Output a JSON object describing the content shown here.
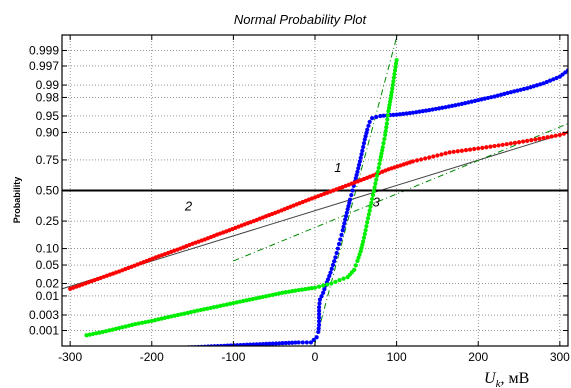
{
  "chart_data": {
    "type": "scatter",
    "title": "Normal Probability Plot",
    "xlabel_main": "U",
    "xlabel_sub": "k",
    "xlabel_unit": ", мВ",
    "ylabel": "Probability",
    "xlim": [
      -310,
      310
    ],
    "ylim_prob": [
      0.0003,
      0.9997
    ],
    "x_ticks": [
      -300,
      -200,
      -100,
      0,
      100,
      200,
      300
    ],
    "x_tick_labels": [
      "-300",
      "-200",
      "-100",
      "0",
      "100",
      "200",
      "300"
    ],
    "y_ticks": [
      0.001,
      0.003,
      0.01,
      0.02,
      0.05,
      0.1,
      0.25,
      0.5,
      0.75,
      0.9,
      0.95,
      0.98,
      0.99,
      0.997,
      0.999
    ],
    "y_tick_labels": [
      "0.001",
      "0.003",
      "0.01",
      "0.02",
      "0.05",
      "0.10",
      "0.25",
      "0.50",
      "0.75",
      "0.90",
      "0.95",
      "0.98",
      "0.99",
      "0.997",
      "0.999"
    ],
    "y_scale": "normal-probability",
    "grid": true,
    "reference_line_p": 0.5,
    "annotations": [
      {
        "text": "1",
        "x": 28,
        "p": 0.66
      },
      {
        "text": "2",
        "x": -155,
        "p": 0.33
      },
      {
        "text": "3",
        "x": 75,
        "p": 0.36
      }
    ],
    "series": [
      {
        "label": "1",
        "color": "#0000ff",
        "points": [
          [
            -250,
            0.0002
          ],
          [
            -20,
            0.0004
          ],
          [
            -5,
            0.0004
          ],
          [
            2,
            0.0006
          ],
          [
            4,
            0.0009
          ],
          [
            5,
            0.0015
          ],
          [
            5,
            0.0025
          ],
          [
            5,
            0.005
          ],
          [
            6,
            0.008
          ],
          [
            10,
            0.012
          ],
          [
            13,
            0.018
          ],
          [
            16,
            0.025
          ],
          [
            19,
            0.035
          ],
          [
            22,
            0.05
          ],
          [
            25,
            0.07
          ],
          [
            28,
            0.1
          ],
          [
            31,
            0.14
          ],
          [
            34,
            0.19
          ],
          [
            37,
            0.26
          ],
          [
            40,
            0.34
          ],
          [
            43,
            0.42
          ],
          [
            46,
            0.5
          ],
          [
            49,
            0.58
          ],
          [
            52,
            0.66
          ],
          [
            55,
            0.74
          ],
          [
            58,
            0.81
          ],
          [
            61,
            0.87
          ],
          [
            64,
            0.91
          ],
          [
            67,
            0.935
          ],
          [
            70,
            0.945
          ],
          [
            80,
            0.95
          ],
          [
            100,
            0.953
          ],
          [
            120,
            0.957
          ],
          [
            140,
            0.962
          ],
          [
            160,
            0.967
          ],
          [
            180,
            0.972
          ],
          [
            200,
            0.977
          ],
          [
            220,
            0.981
          ],
          [
            240,
            0.985
          ],
          [
            260,
            0.988
          ],
          [
            280,
            0.991
          ],
          [
            300,
            0.994
          ],
          [
            310,
            0.996
          ]
        ]
      },
      {
        "label": "2",
        "color": "#ff0000",
        "points": [
          [
            -300,
            0.015
          ],
          [
            -285,
            0.019
          ],
          [
            -270,
            0.024
          ],
          [
            -255,
            0.03
          ],
          [
            -240,
            0.037
          ],
          [
            -225,
            0.046
          ],
          [
            -210,
            0.057
          ],
          [
            -195,
            0.07
          ],
          [
            -180,
            0.084
          ],
          [
            -165,
            0.1
          ],
          [
            -150,
            0.12
          ],
          [
            -135,
            0.14
          ],
          [
            -120,
            0.165
          ],
          [
            -105,
            0.19
          ],
          [
            -90,
            0.22
          ],
          [
            -75,
            0.25
          ],
          [
            -60,
            0.285
          ],
          [
            -45,
            0.32
          ],
          [
            -30,
            0.36
          ],
          [
            -15,
            0.4
          ],
          [
            0,
            0.44
          ],
          [
            15,
            0.48
          ],
          [
            30,
            0.52
          ],
          [
            45,
            0.56
          ],
          [
            60,
            0.6
          ],
          [
            75,
            0.64
          ],
          [
            90,
            0.68
          ],
          [
            105,
            0.71
          ],
          [
            120,
            0.74
          ],
          [
            135,
            0.76
          ],
          [
            150,
            0.78
          ],
          [
            165,
            0.8
          ],
          [
            180,
            0.81
          ],
          [
            195,
            0.82
          ],
          [
            210,
            0.83
          ],
          [
            225,
            0.84
          ],
          [
            240,
            0.85
          ],
          [
            255,
            0.86
          ],
          [
            270,
            0.87
          ],
          [
            285,
            0.88
          ],
          [
            300,
            0.89
          ],
          [
            310,
            0.9
          ]
        ]
      },
      {
        "label": "3",
        "color": "#00ee00",
        "points": [
          [
            -280,
            0.0007
          ],
          [
            -260,
            0.0009
          ],
          [
            -240,
            0.0012
          ],
          [
            -220,
            0.0016
          ],
          [
            -200,
            0.002
          ],
          [
            -180,
            0.0026
          ],
          [
            -160,
            0.0033
          ],
          [
            -140,
            0.0042
          ],
          [
            -120,
            0.0052
          ],
          [
            -100,
            0.0065
          ],
          [
            -80,
            0.008
          ],
          [
            -60,
            0.0098
          ],
          [
            -40,
            0.012
          ],
          [
            -20,
            0.014
          ],
          [
            0,
            0.016
          ],
          [
            10,
            0.018
          ],
          [
            20,
            0.02
          ],
          [
            30,
            0.024
          ],
          [
            40,
            0.028
          ],
          [
            48,
            0.04
          ],
          [
            52,
            0.06
          ],
          [
            56,
            0.09
          ],
          [
            59,
            0.13
          ],
          [
            62,
            0.19
          ],
          [
            65,
            0.27
          ],
          [
            68,
            0.36
          ],
          [
            71,
            0.46
          ],
          [
            74,
            0.56
          ],
          [
            77,
            0.66
          ],
          [
            80,
            0.75
          ],
          [
            83,
            0.83
          ],
          [
            86,
            0.89
          ],
          [
            88,
            0.93
          ],
          [
            90,
            0.96
          ],
          [
            92,
            0.975
          ],
          [
            94,
            0.985
          ],
          [
            96,
            0.992
          ],
          [
            98,
            0.996
          ],
          [
            100,
            0.998
          ]
        ]
      }
    ],
    "fit_lines": [
      {
        "color": "#444444",
        "style": "solid",
        "from": [
          -310,
          0.015
        ],
        "to": [
          310,
          0.9
        ]
      },
      {
        "color": "#008800",
        "style": "dash-dot",
        "from": [
          -5,
          0.0001
        ],
        "to": [
          105,
          0.9999
        ]
      },
      {
        "color": "#008800",
        "style": "dash-dot",
        "from": [
          -100,
          0.06
        ],
        "to": [
          310,
          0.93
        ]
      }
    ]
  }
}
